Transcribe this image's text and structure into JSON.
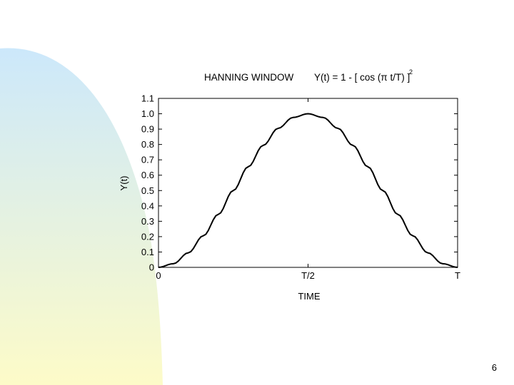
{
  "page_number": "6",
  "colors": {
    "background": "#ffffff",
    "decor_top": "#cce8fb",
    "decor_bottom": "#fdfbc8",
    "curve": "#000000"
  },
  "chart_data": {
    "type": "line",
    "title_left": "HANNING WINDOW",
    "title_formula": "Y(t) = 1 - [ cos (π t/T) ]",
    "title_exponent": "2",
    "xlabel": "TIME",
    "ylabel": "Y(t)",
    "x_ticks": [
      {
        "value": 0,
        "label": "0"
      },
      {
        "value": 0.5,
        "label": "T/2"
      },
      {
        "value": 1,
        "label": "T"
      }
    ],
    "y_ticks": [
      "0",
      "0.1",
      "0.2",
      "0.3",
      "0.4",
      "0.5",
      "0.6",
      "0.7",
      "0.8",
      "0.9",
      "1.0",
      "1.1"
    ],
    "y_tick_values": [
      0,
      0.1,
      0.2,
      0.3,
      0.4,
      0.5,
      0.6,
      0.7,
      0.8,
      0.9,
      1.0,
      1.1
    ],
    "xlim": [
      0,
      1
    ],
    "ylim": [
      0,
      1.1
    ],
    "grid": false,
    "series": [
      {
        "x": [
          0,
          0.05,
          0.1,
          0.15,
          0.2,
          0.25,
          0.3,
          0.35,
          0.4,
          0.45,
          0.5,
          0.55,
          0.6,
          0.65,
          0.7,
          0.75,
          0.8,
          0.85,
          0.9,
          0.95,
          1
        ],
        "values": [
          0,
          0.024,
          0.095,
          0.206,
          0.345,
          0.5,
          0.655,
          0.794,
          0.905,
          0.976,
          1,
          0.976,
          0.905,
          0.794,
          0.655,
          0.5,
          0.345,
          0.206,
          0.095,
          0.024,
          0
        ]
      }
    ]
  }
}
